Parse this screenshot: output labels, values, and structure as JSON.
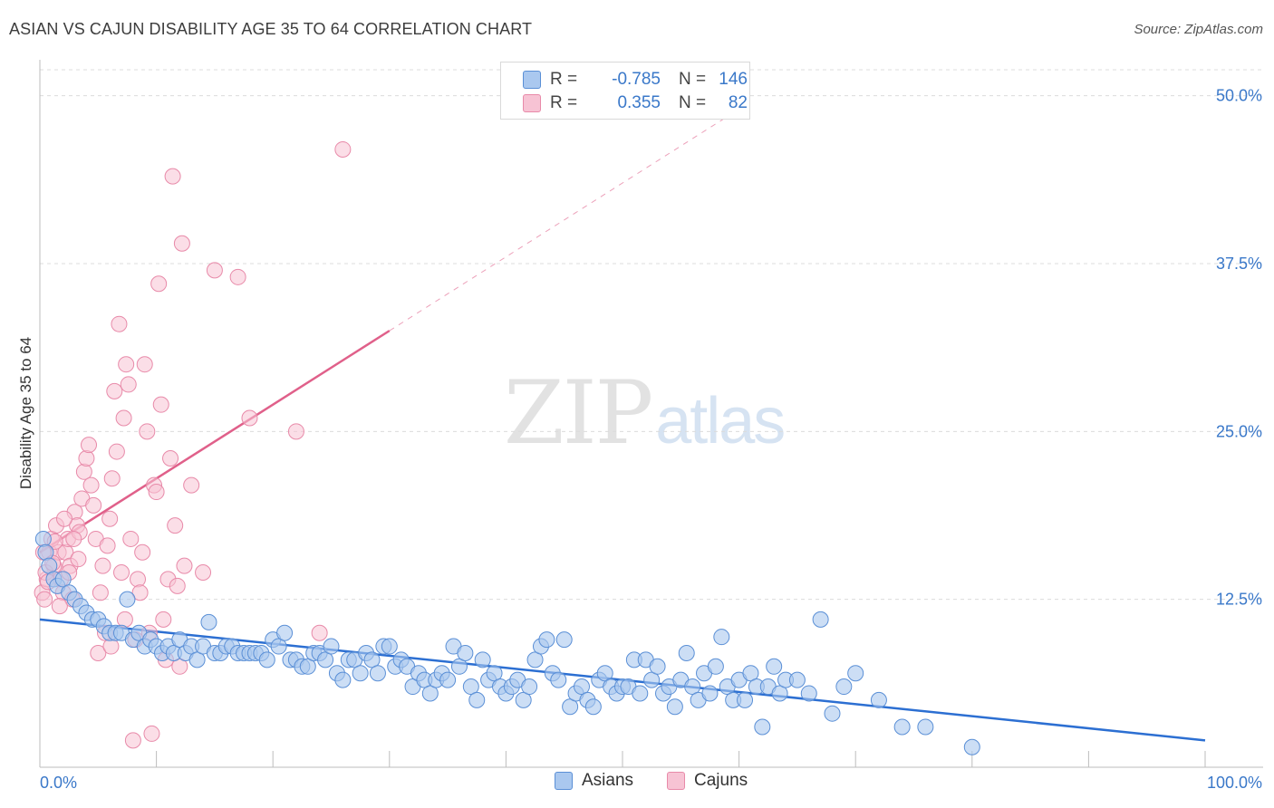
{
  "title": "ASIAN VS CAJUN DISABILITY AGE 35 TO 64 CORRELATION CHART",
  "source": "Source: ZipAtlas.com",
  "watermark": {
    "part1": "ZIP",
    "part2": "atlas"
  },
  "colors": {
    "asian_fill": "#aac8ef",
    "asian_stroke": "#5a8fd6",
    "asian_line": "#2c6fd2",
    "cajun_fill": "#f7c3d4",
    "cajun_stroke": "#e88aa9",
    "cajun_line": "#e0608a",
    "grid": "#dcdcdc",
    "tick_label": "#3a78c9"
  },
  "legend": {
    "rows": [
      {
        "r_label": "R =",
        "r_value": "-0.785",
        "n_label": "N =",
        "n_value": "146"
      },
      {
        "r_label": "R =",
        "r_value": "0.355",
        "n_label": "N =",
        "n_value": "82"
      }
    ]
  },
  "bottom_legend": {
    "asians": "Asians",
    "cajuns": "Cajuns"
  },
  "chart_data": {
    "type": "scatter",
    "title": "ASIAN VS CAJUN DISABILITY AGE 35 TO 64 CORRELATION CHART",
    "xlabel": "",
    "ylabel": "Disability Age 35 to 64",
    "xlim": [
      0,
      100
    ],
    "ylim": [
      0,
      52
    ],
    "x_tick_labels": [
      "0.0%",
      "100.0%"
    ],
    "y_ticks": [
      12.5,
      25.0,
      37.5,
      50.0
    ],
    "y_tick_labels": [
      "12.5%",
      "25.0%",
      "37.5%",
      "50.0%"
    ],
    "grid": true,
    "legend_position": "top-center",
    "series": [
      {
        "name": "Asians",
        "R": -0.785,
        "N": 146,
        "trend": {
          "x": [
            0,
            100
          ],
          "y": [
            11.0,
            2.0
          ],
          "dashed_after": null
        },
        "points": [
          [
            0.3,
            17
          ],
          [
            0.5,
            16
          ],
          [
            0.8,
            15
          ],
          [
            1.2,
            14
          ],
          [
            1.5,
            13.5
          ],
          [
            2,
            14
          ],
          [
            2.5,
            13
          ],
          [
            3,
            12.5
          ],
          [
            3.5,
            12
          ],
          [
            4,
            11.5
          ],
          [
            4.5,
            11
          ],
          [
            5,
            11
          ],
          [
            5.5,
            10.5
          ],
          [
            6,
            10
          ],
          [
            6.5,
            10
          ],
          [
            7,
            10
          ],
          [
            7.5,
            12.5
          ],
          [
            8,
            9.5
          ],
          [
            8.5,
            10
          ],
          [
            9,
            9
          ],
          [
            9.5,
            9.5
          ],
          [
            10,
            9
          ],
          [
            10.5,
            8.5
          ],
          [
            11,
            9
          ],
          [
            11.5,
            8.5
          ],
          [
            12,
            9.5
          ],
          [
            12.5,
            8.5
          ],
          [
            13,
            9
          ],
          [
            13.5,
            8
          ],
          [
            14,
            9
          ],
          [
            14.5,
            10.8
          ],
          [
            15,
            8.5
          ],
          [
            15.5,
            8.5
          ],
          [
            16,
            9
          ],
          [
            16.5,
            9
          ],
          [
            17,
            8.5
          ],
          [
            17.5,
            8.5
          ],
          [
            18,
            8.5
          ],
          [
            18.5,
            8.5
          ],
          [
            19,
            8.5
          ],
          [
            19.5,
            8
          ],
          [
            20,
            9.5
          ],
          [
            20.5,
            9
          ],
          [
            21,
            10
          ],
          [
            21.5,
            8
          ],
          [
            22,
            8
          ],
          [
            22.5,
            7.5
          ],
          [
            23,
            7.5
          ],
          [
            23.5,
            8.5
          ],
          [
            24,
            8.5
          ],
          [
            24.5,
            8
          ],
          [
            25,
            9
          ],
          [
            25.5,
            7
          ],
          [
            26,
            6.5
          ],
          [
            26.5,
            8
          ],
          [
            27,
            8
          ],
          [
            27.5,
            7
          ],
          [
            28,
            8.5
          ],
          [
            28.5,
            8
          ],
          [
            29,
            7
          ],
          [
            29.5,
            9
          ],
          [
            30,
            9
          ],
          [
            30.5,
            7.5
          ],
          [
            31,
            8
          ],
          [
            31.5,
            7.5
          ],
          [
            32,
            6
          ],
          [
            32.5,
            7
          ],
          [
            33,
            6.5
          ],
          [
            33.5,
            5.5
          ],
          [
            34,
            6.5
          ],
          [
            34.5,
            7
          ],
          [
            35,
            6.5
          ],
          [
            35.5,
            9
          ],
          [
            36,
            7.5
          ],
          [
            36.5,
            8.5
          ],
          [
            37,
            6
          ],
          [
            37.5,
            5
          ],
          [
            38,
            8
          ],
          [
            38.5,
            6.5
          ],
          [
            39,
            7
          ],
          [
            39.5,
            6
          ],
          [
            40,
            5.5
          ],
          [
            40.5,
            6
          ],
          [
            41,
            6.5
          ],
          [
            41.5,
            5
          ],
          [
            42,
            6
          ],
          [
            42.5,
            8
          ],
          [
            43,
            9
          ],
          [
            43.5,
            9.5
          ],
          [
            44,
            7
          ],
          [
            44.5,
            6.5
          ],
          [
            45,
            9.5
          ],
          [
            45.5,
            4.5
          ],
          [
            46,
            5.5
          ],
          [
            46.5,
            6
          ],
          [
            47,
            5
          ],
          [
            47.5,
            4.5
          ],
          [
            48,
            6.5
          ],
          [
            48.5,
            7
          ],
          [
            49,
            6
          ],
          [
            49.5,
            5.5
          ],
          [
            50,
            6
          ],
          [
            50.5,
            6
          ],
          [
            51,
            8
          ],
          [
            51.5,
            5.5
          ],
          [
            52,
            8
          ],
          [
            52.5,
            6.5
          ],
          [
            53,
            7.5
          ],
          [
            53.5,
            5.5
          ],
          [
            54,
            6
          ],
          [
            54.5,
            4.5
          ],
          [
            55,
            6.5
          ],
          [
            55.5,
            8.5
          ],
          [
            56,
            6
          ],
          [
            56.5,
            5
          ],
          [
            57,
            7
          ],
          [
            57.5,
            5.5
          ],
          [
            58,
            7.5
          ],
          [
            58.5,
            9.7
          ],
          [
            59,
            6
          ],
          [
            59.5,
            5
          ],
          [
            60,
            6.5
          ],
          [
            60.5,
            5
          ],
          [
            61,
            7
          ],
          [
            61.5,
            6
          ],
          [
            62,
            3
          ],
          [
            62.5,
            6
          ],
          [
            63,
            7.5
          ],
          [
            63.5,
            5.5
          ],
          [
            64,
            6.5
          ],
          [
            65,
            6.5
          ],
          [
            66,
            5.5
          ],
          [
            67,
            11
          ],
          [
            68,
            4
          ],
          [
            69,
            6
          ],
          [
            70,
            7
          ],
          [
            72,
            5
          ],
          [
            74,
            3
          ],
          [
            76,
            3
          ],
          [
            80,
            1.5
          ]
        ]
      },
      {
        "name": "Cajuns",
        "R": 0.355,
        "N": 82,
        "trend": {
          "x": [
            0,
            30
          ],
          "y": [
            16.0,
            32.5
          ],
          "dashed_to": {
            "x": 60,
            "y": 49.0
          }
        },
        "points": [
          [
            0.2,
            13
          ],
          [
            0.4,
            12.5
          ],
          [
            0.6,
            14
          ],
          [
            0.8,
            16
          ],
          [
            1,
            17
          ],
          [
            1.2,
            15
          ],
          [
            1.4,
            18
          ],
          [
            1.6,
            16
          ],
          [
            1.8,
            14
          ],
          [
            2,
            13
          ],
          [
            2.2,
            16
          ],
          [
            2.4,
            17
          ],
          [
            2.6,
            15
          ],
          [
            2.8,
            12.5
          ],
          [
            3,
            19
          ],
          [
            3.2,
            18
          ],
          [
            3.4,
            17.5
          ],
          [
            3.6,
            20
          ],
          [
            3.8,
            22
          ],
          [
            4,
            23
          ],
          [
            4.2,
            24
          ],
          [
            4.4,
            21
          ],
          [
            4.6,
            19.5
          ],
          [
            4.8,
            17
          ],
          [
            5,
            8.5
          ],
          [
            5.2,
            13
          ],
          [
            5.4,
            15
          ],
          [
            5.6,
            10
          ],
          [
            5.8,
            16.5
          ],
          [
            6,
            18.5
          ],
          [
            6.2,
            21.5
          ],
          [
            6.4,
            28
          ],
          [
            6.6,
            23.5
          ],
          [
            6.8,
            33
          ],
          [
            7,
            14.5
          ],
          [
            7.2,
            26
          ],
          [
            7.4,
            30
          ],
          [
            7.6,
            28.5
          ],
          [
            7.8,
            17
          ],
          [
            8,
            2
          ],
          [
            8.2,
            9.5
          ],
          [
            8.4,
            14
          ],
          [
            8.6,
            13
          ],
          [
            8.8,
            16
          ],
          [
            9,
            30
          ],
          [
            9.2,
            25
          ],
          [
            9.4,
            10
          ],
          [
            9.6,
            2.5
          ],
          [
            9.8,
            21
          ],
          [
            10,
            20.5
          ],
          [
            10.2,
            36
          ],
          [
            10.4,
            27
          ],
          [
            10.6,
            11
          ],
          [
            10.8,
            8
          ],
          [
            11,
            14
          ],
          [
            11.2,
            23
          ],
          [
            11.4,
            44
          ],
          [
            11.6,
            18
          ],
          [
            11.8,
            13.5
          ],
          [
            12,
            7.5
          ],
          [
            12.2,
            39
          ],
          [
            12.4,
            15
          ],
          [
            13,
            21
          ],
          [
            14,
            14.5
          ],
          [
            15,
            37
          ],
          [
            17,
            36.5
          ],
          [
            18,
            26
          ],
          [
            22,
            25
          ],
          [
            24,
            10
          ],
          [
            26,
            46
          ],
          [
            0.3,
            16
          ],
          [
            0.5,
            14.5
          ],
          [
            0.7,
            13.8
          ],
          [
            1.1,
            15.2
          ],
          [
            1.3,
            16.8
          ],
          [
            1.7,
            12
          ],
          [
            2.1,
            18.5
          ],
          [
            2.5,
            14.5
          ],
          [
            2.9,
            17
          ],
          [
            3.3,
            15.5
          ],
          [
            6.1,
            9
          ],
          [
            7.3,
            11
          ]
        ]
      }
    ]
  }
}
